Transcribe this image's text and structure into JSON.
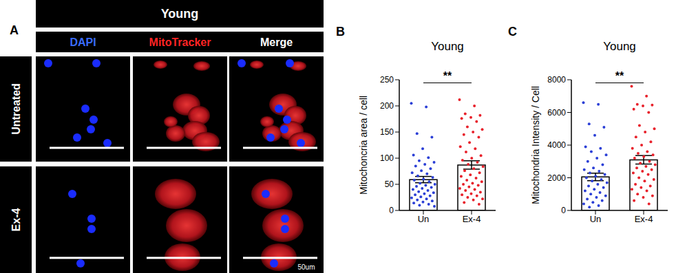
{
  "figure_a": {
    "panel_label": "A",
    "title": "Young",
    "columns": [
      "DAPI",
      "MitoTracker",
      "Merge"
    ],
    "rows": [
      "Untreated",
      "Ex-4"
    ],
    "scale_bar": "50um"
  },
  "chart_data": [
    {
      "type": "bar",
      "panel_label": "B",
      "title": "Young",
      "y_label": "Mitochoncria area / cell",
      "categories": [
        "Un",
        "Ex-4"
      ],
      "values": [
        59,
        87
      ],
      "errors": [
        6,
        8
      ],
      "colors": [
        "#2b3fd6",
        "#e8212b"
      ],
      "points": [
        [
          205,
          198,
          147,
          140,
          118,
          106,
          101,
          95,
          92,
          88,
          85,
          80,
          76,
          72,
          70,
          66,
          63,
          60,
          58,
          55,
          52,
          50,
          48,
          46,
          44,
          42,
          40,
          38,
          36,
          34,
          32,
          30,
          28,
          26,
          24,
          22,
          20,
          18,
          16,
          14,
          12,
          10,
          8
        ],
        [
          212,
          200,
          185,
          182,
          178,
          176,
          170,
          160,
          155,
          150,
          145,
          140,
          130,
          122,
          118,
          112,
          105,
          100,
          96,
          92,
          88,
          84,
          80,
          76,
          72,
          68,
          65,
          62,
          58,
          55,
          52,
          50,
          48,
          45,
          42,
          40,
          38,
          35,
          32,
          30,
          28,
          25,
          22,
          20,
          15,
          12
        ]
      ],
      "ylim": [
        0,
        250
      ],
      "yticks": [
        0,
        50,
        100,
        150,
        200,
        250
      ],
      "grid": false,
      "annotations": [
        "**"
      ]
    },
    {
      "type": "bar",
      "panel_label": "C",
      "title": "Young",
      "y_label": "Mitochondria Intensity / Cell",
      "categories": [
        "Un",
        "Ex-4"
      ],
      "values": [
        2050,
        3100
      ],
      "errors": [
        230,
        260
      ],
      "colors": [
        "#2b3fd6",
        "#e8212b"
      ],
      "points": [
        [
          6600,
          6500,
          5300,
          5100,
          4600,
          3900,
          3800,
          3600,
          3400,
          3200,
          3000,
          2800,
          2600,
          2500,
          2400,
          2300,
          2200,
          2100,
          2000,
          1900,
          1800,
          1700,
          1600,
          1500,
          1400,
          1300,
          1200,
          1100,
          1000,
          900,
          800,
          700,
          600,
          500,
          400,
          300,
          200
        ],
        [
          7600,
          7000,
          6500,
          6450,
          6400,
          6200,
          6000,
          5200,
          5000,
          4800,
          4500,
          4200,
          4000,
          3800,
          3600,
          3500,
          3400,
          3300,
          3200,
          3000,
          2900,
          2800,
          2700,
          2600,
          2500,
          2400,
          2300,
          2200,
          2000,
          1900,
          1800,
          1600,
          1500,
          1400,
          1300,
          1200,
          1000,
          900,
          800,
          600,
          400
        ]
      ],
      "ylim": [
        0,
        8000
      ],
      "yticks": [
        0,
        2000,
        4000,
        6000,
        8000
      ],
      "grid": false,
      "annotations": [
        "**"
      ]
    }
  ]
}
